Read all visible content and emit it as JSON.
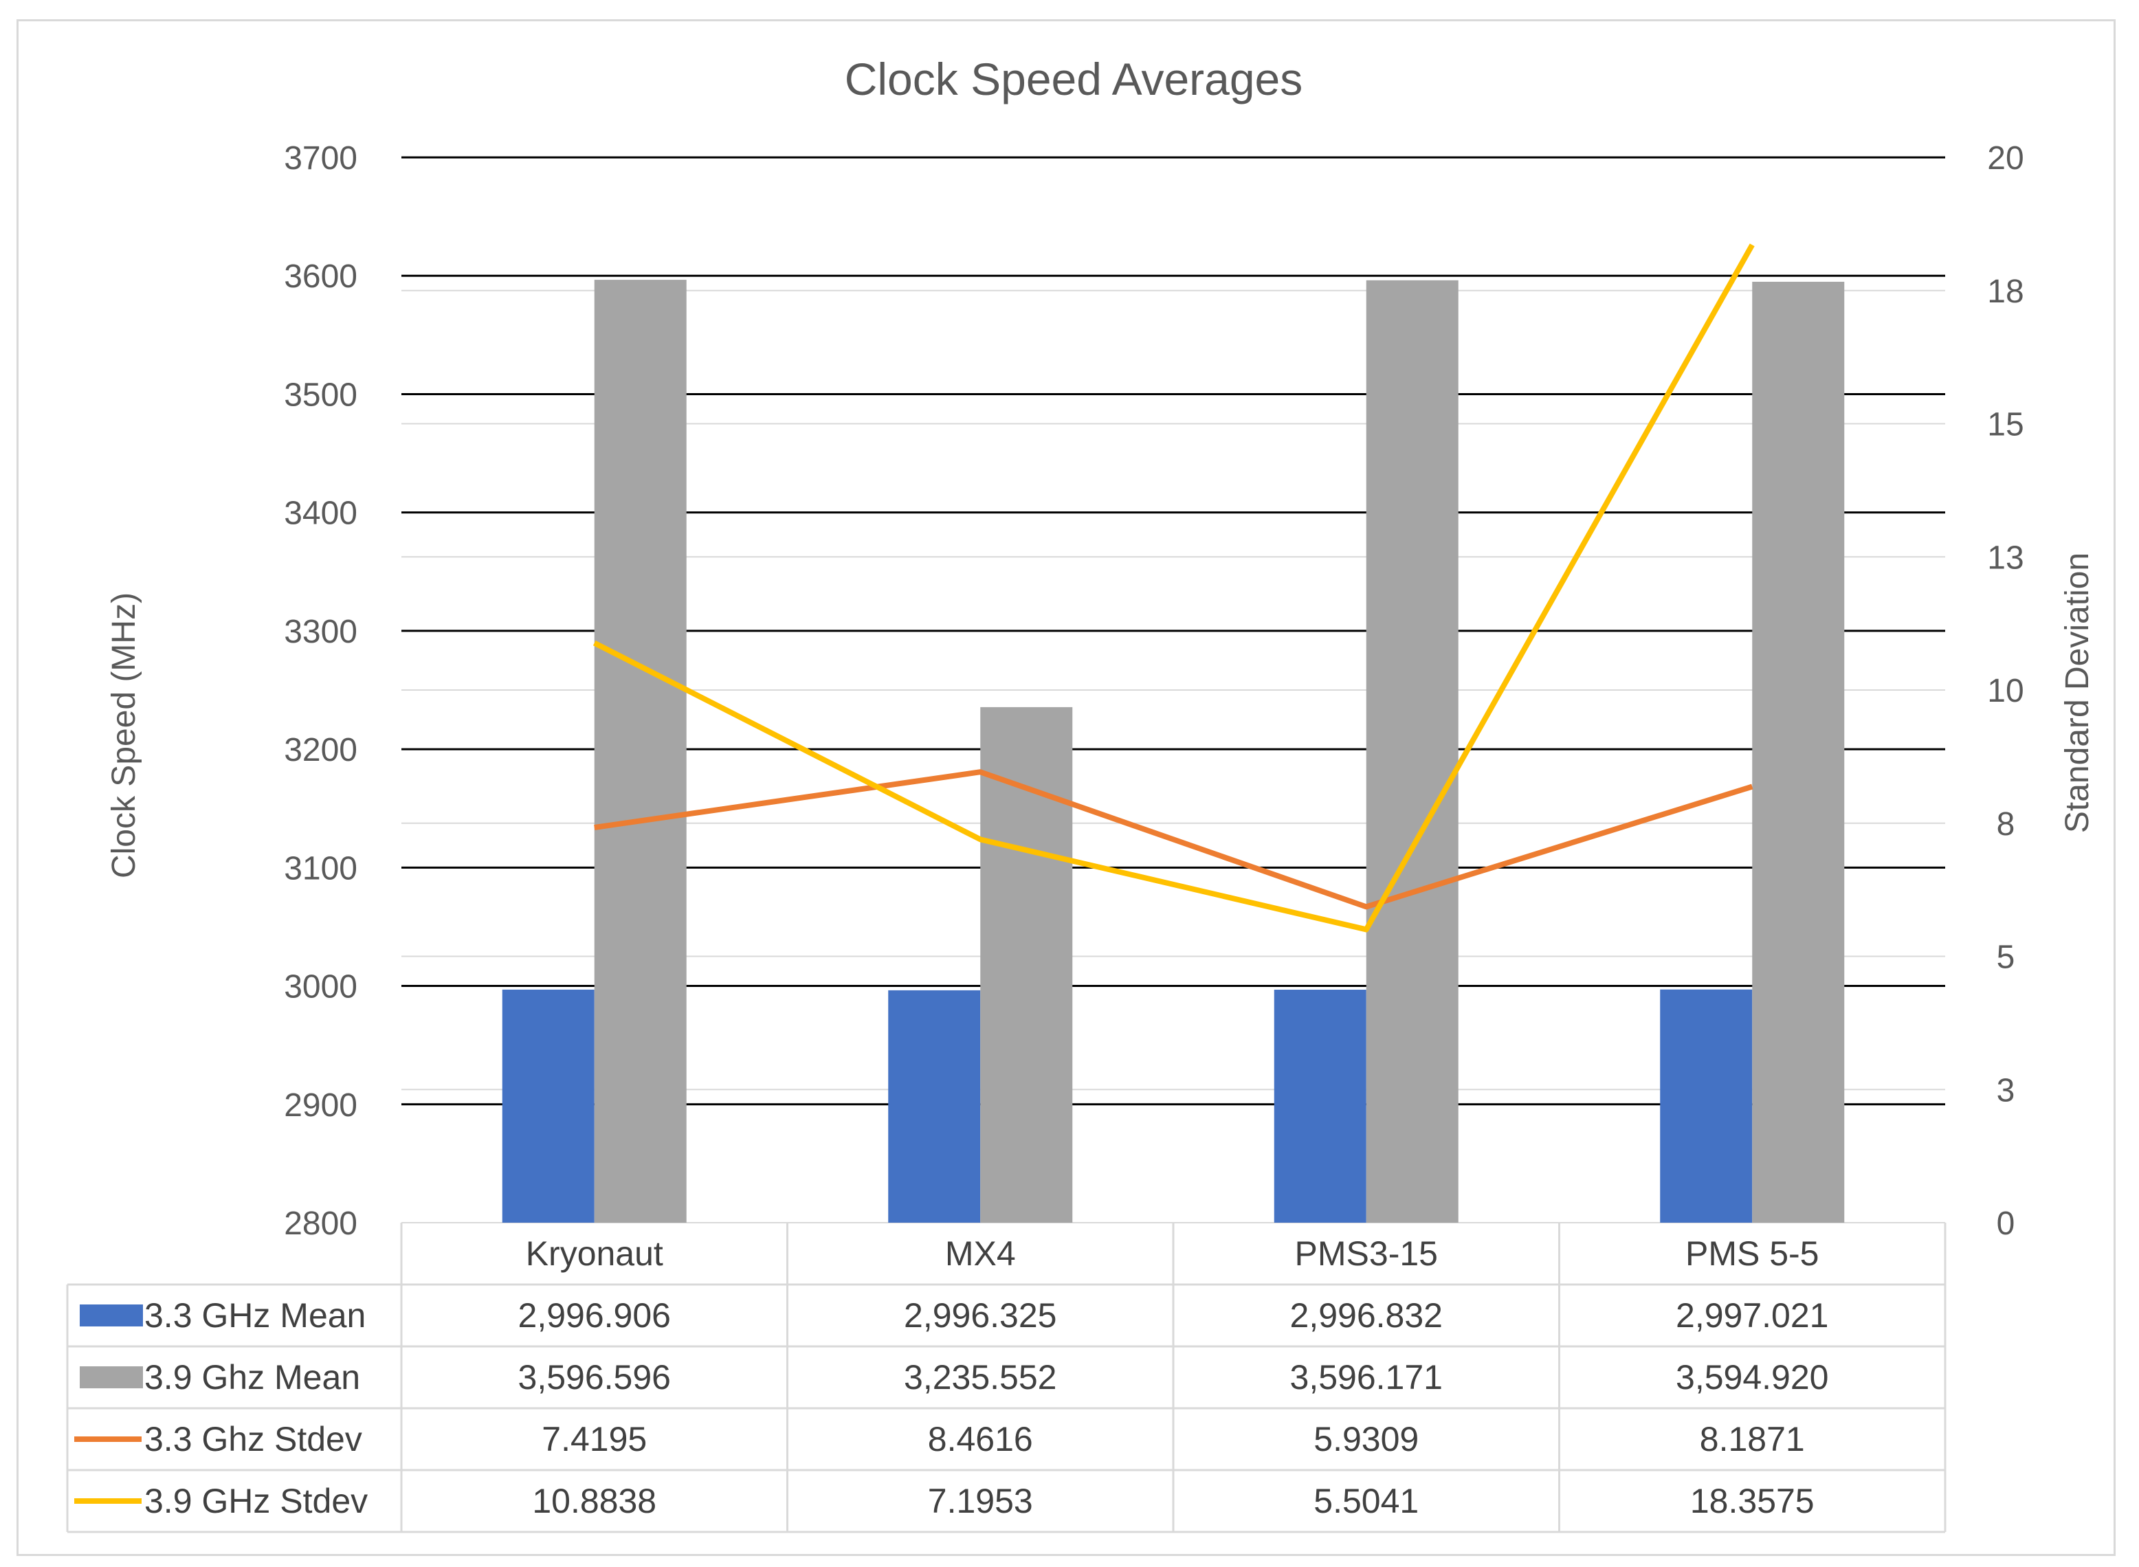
{
  "chart_data": {
    "type": "bar",
    "title": "Clock Speed Averages",
    "categories": [
      "Kryonaut",
      "MX4",
      "PMS3-15",
      "PMS 5-5"
    ],
    "y_left": {
      "label": "Clock Speed (MHz)",
      "range": [
        2800,
        3700
      ],
      "ticks": [
        "2800",
        "2900",
        "3000",
        "3100",
        "3200",
        "3300",
        "3400",
        "3500",
        "3600",
        "3700"
      ]
    },
    "y_right": {
      "label": "Standard Deviation",
      "range": [
        0,
        20
      ],
      "ticks": [
        "0",
        "3",
        "5",
        "8",
        "10",
        "13",
        "15",
        "18",
        "20"
      ],
      "tick_values": [
        0,
        2.5,
        5,
        7.5,
        10,
        12.5,
        15,
        17.5,
        20
      ]
    },
    "grid": true,
    "legend": "data-table",
    "series": [
      {
        "name": "3.3 GHz Mean",
        "kind": "bar",
        "axis": "left",
        "color": "#4472c4",
        "values": [
          2996.906,
          2996.325,
          2996.832,
          2997.021
        ],
        "labels": [
          "2,996.906",
          "2,996.325",
          "2,996.832",
          "2,997.021"
        ]
      },
      {
        "name": "3.9 Ghz Mean",
        "kind": "bar",
        "axis": "left",
        "color": "#a5a5a5",
        "values": [
          3596.596,
          3235.552,
          3596.171,
          3594.92
        ],
        "labels": [
          "3,596.596",
          "3,235.552",
          "3,596.171",
          "3,594.920"
        ]
      },
      {
        "name": "3.3 Ghz Stdev",
        "kind": "line",
        "axis": "right",
        "color": "#ed7d31",
        "values": [
          7.4195,
          8.4616,
          5.9309,
          8.1871
        ],
        "labels": [
          "7.4195",
          "8.4616",
          "5.9309",
          "8.1871"
        ]
      },
      {
        "name": "3.9 GHz Stdev",
        "kind": "line",
        "axis": "right",
        "color": "#ffc000",
        "values": [
          10.8838,
          7.1953,
          5.5041,
          18.3575
        ],
        "labels": [
          "10.8838",
          "7.1953",
          "5.5041",
          "18.3575"
        ]
      }
    ]
  }
}
